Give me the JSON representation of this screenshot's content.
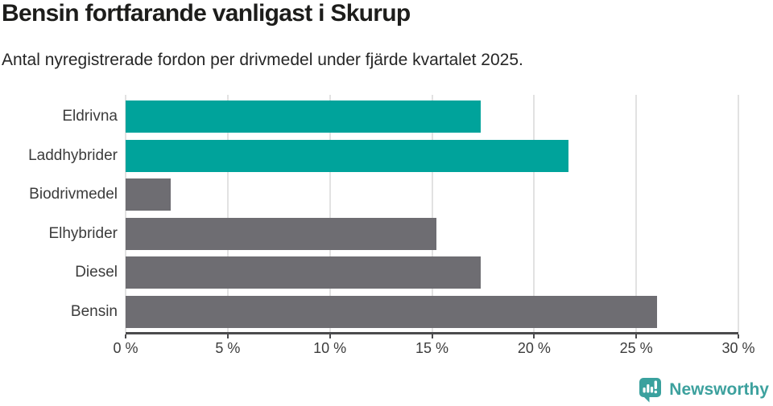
{
  "header": {
    "title": "Bensin fortfarande vanligast i Skurup",
    "subtitle": "Antal nyregistrerade fordon per drivmedel under fjärde kvartalet 2025."
  },
  "chart_data": {
    "type": "bar",
    "orientation": "horizontal",
    "title": "Bensin fortfarande vanligast i Skurup",
    "subtitle": "Antal nyregistrerade fordon per drivmedel under fjärde kvartalet 2025.",
    "categories": [
      "Eldrivna",
      "Laddhybrider",
      "Biodrivmedel",
      "Elhybrider",
      "Diesel",
      "Bensin"
    ],
    "values": [
      17.4,
      21.7,
      2.2,
      15.2,
      17.4,
      26.0
    ],
    "unit": "%",
    "bar_colors": [
      "#00a39b",
      "#00a39b",
      "#6e6d72",
      "#6e6d72",
      "#6e6d72",
      "#6e6d72"
    ],
    "highlight_color": "#00a39b",
    "default_color": "#6e6d72",
    "xlabel": "",
    "ylabel": "",
    "xlim": [
      0,
      30
    ],
    "x_ticks": [
      0,
      5,
      10,
      15,
      20,
      25,
      30
    ],
    "x_tick_labels": [
      "0 %",
      "5 %",
      "10 %",
      "15 %",
      "20 %",
      "25 %",
      "30 %"
    ],
    "grid": true,
    "legend": "none"
  },
  "footer": {
    "brand": "Newsworthy",
    "brand_color": "#3da19e",
    "icon_color": "#3aa19e"
  }
}
